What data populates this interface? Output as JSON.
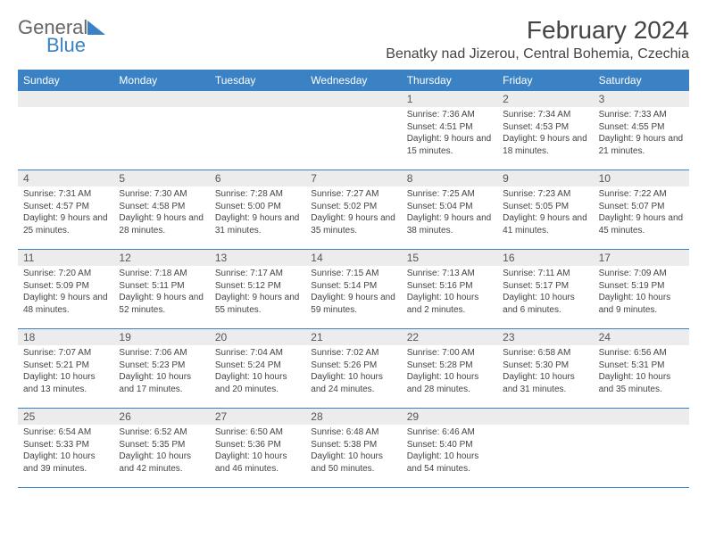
{
  "logo": {
    "word1": "General",
    "word2": "Blue",
    "word1_color": "#666666",
    "word2_color": "#3b82c4",
    "triangle_color": "#3b82c4"
  },
  "title": "February 2024",
  "location": "Benatky nad Jizerou, Central Bohemia, Czechia",
  "colors": {
    "header_bg": "#3b82c4",
    "header_text": "#ffffff",
    "daynum_bg": "#ececec",
    "text": "#444444",
    "border": "#3b82c4"
  },
  "weekdays": [
    "Sunday",
    "Monday",
    "Tuesday",
    "Wednesday",
    "Thursday",
    "Friday",
    "Saturday"
  ],
  "weeks": [
    [
      null,
      null,
      null,
      null,
      {
        "n": "1",
        "sr": "Sunrise: 7:36 AM",
        "ss": "Sunset: 4:51 PM",
        "dl": "Daylight: 9 hours and 15 minutes."
      },
      {
        "n": "2",
        "sr": "Sunrise: 7:34 AM",
        "ss": "Sunset: 4:53 PM",
        "dl": "Daylight: 9 hours and 18 minutes."
      },
      {
        "n": "3",
        "sr": "Sunrise: 7:33 AM",
        "ss": "Sunset: 4:55 PM",
        "dl": "Daylight: 9 hours and 21 minutes."
      }
    ],
    [
      {
        "n": "4",
        "sr": "Sunrise: 7:31 AM",
        "ss": "Sunset: 4:57 PM",
        "dl": "Daylight: 9 hours and 25 minutes."
      },
      {
        "n": "5",
        "sr": "Sunrise: 7:30 AM",
        "ss": "Sunset: 4:58 PM",
        "dl": "Daylight: 9 hours and 28 minutes."
      },
      {
        "n": "6",
        "sr": "Sunrise: 7:28 AM",
        "ss": "Sunset: 5:00 PM",
        "dl": "Daylight: 9 hours and 31 minutes."
      },
      {
        "n": "7",
        "sr": "Sunrise: 7:27 AM",
        "ss": "Sunset: 5:02 PM",
        "dl": "Daylight: 9 hours and 35 minutes."
      },
      {
        "n": "8",
        "sr": "Sunrise: 7:25 AM",
        "ss": "Sunset: 5:04 PM",
        "dl": "Daylight: 9 hours and 38 minutes."
      },
      {
        "n": "9",
        "sr": "Sunrise: 7:23 AM",
        "ss": "Sunset: 5:05 PM",
        "dl": "Daylight: 9 hours and 41 minutes."
      },
      {
        "n": "10",
        "sr": "Sunrise: 7:22 AM",
        "ss": "Sunset: 5:07 PM",
        "dl": "Daylight: 9 hours and 45 minutes."
      }
    ],
    [
      {
        "n": "11",
        "sr": "Sunrise: 7:20 AM",
        "ss": "Sunset: 5:09 PM",
        "dl": "Daylight: 9 hours and 48 minutes."
      },
      {
        "n": "12",
        "sr": "Sunrise: 7:18 AM",
        "ss": "Sunset: 5:11 PM",
        "dl": "Daylight: 9 hours and 52 minutes."
      },
      {
        "n": "13",
        "sr": "Sunrise: 7:17 AM",
        "ss": "Sunset: 5:12 PM",
        "dl": "Daylight: 9 hours and 55 minutes."
      },
      {
        "n": "14",
        "sr": "Sunrise: 7:15 AM",
        "ss": "Sunset: 5:14 PM",
        "dl": "Daylight: 9 hours and 59 minutes."
      },
      {
        "n": "15",
        "sr": "Sunrise: 7:13 AM",
        "ss": "Sunset: 5:16 PM",
        "dl": "Daylight: 10 hours and 2 minutes."
      },
      {
        "n": "16",
        "sr": "Sunrise: 7:11 AM",
        "ss": "Sunset: 5:17 PM",
        "dl": "Daylight: 10 hours and 6 minutes."
      },
      {
        "n": "17",
        "sr": "Sunrise: 7:09 AM",
        "ss": "Sunset: 5:19 PM",
        "dl": "Daylight: 10 hours and 9 minutes."
      }
    ],
    [
      {
        "n": "18",
        "sr": "Sunrise: 7:07 AM",
        "ss": "Sunset: 5:21 PM",
        "dl": "Daylight: 10 hours and 13 minutes."
      },
      {
        "n": "19",
        "sr": "Sunrise: 7:06 AM",
        "ss": "Sunset: 5:23 PM",
        "dl": "Daylight: 10 hours and 17 minutes."
      },
      {
        "n": "20",
        "sr": "Sunrise: 7:04 AM",
        "ss": "Sunset: 5:24 PM",
        "dl": "Daylight: 10 hours and 20 minutes."
      },
      {
        "n": "21",
        "sr": "Sunrise: 7:02 AM",
        "ss": "Sunset: 5:26 PM",
        "dl": "Daylight: 10 hours and 24 minutes."
      },
      {
        "n": "22",
        "sr": "Sunrise: 7:00 AM",
        "ss": "Sunset: 5:28 PM",
        "dl": "Daylight: 10 hours and 28 minutes."
      },
      {
        "n": "23",
        "sr": "Sunrise: 6:58 AM",
        "ss": "Sunset: 5:30 PM",
        "dl": "Daylight: 10 hours and 31 minutes."
      },
      {
        "n": "24",
        "sr": "Sunrise: 6:56 AM",
        "ss": "Sunset: 5:31 PM",
        "dl": "Daylight: 10 hours and 35 minutes."
      }
    ],
    [
      {
        "n": "25",
        "sr": "Sunrise: 6:54 AM",
        "ss": "Sunset: 5:33 PM",
        "dl": "Daylight: 10 hours and 39 minutes."
      },
      {
        "n": "26",
        "sr": "Sunrise: 6:52 AM",
        "ss": "Sunset: 5:35 PM",
        "dl": "Daylight: 10 hours and 42 minutes."
      },
      {
        "n": "27",
        "sr": "Sunrise: 6:50 AM",
        "ss": "Sunset: 5:36 PM",
        "dl": "Daylight: 10 hours and 46 minutes."
      },
      {
        "n": "28",
        "sr": "Sunrise: 6:48 AM",
        "ss": "Sunset: 5:38 PM",
        "dl": "Daylight: 10 hours and 50 minutes."
      },
      {
        "n": "29",
        "sr": "Sunrise: 6:46 AM",
        "ss": "Sunset: 5:40 PM",
        "dl": "Daylight: 10 hours and 54 minutes."
      },
      null,
      null
    ]
  ]
}
